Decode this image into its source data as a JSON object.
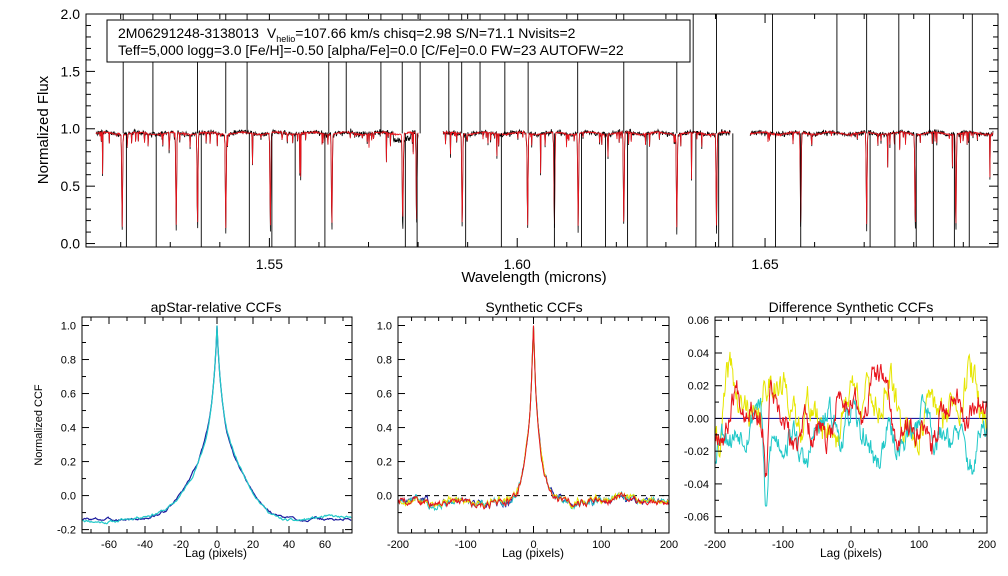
{
  "chart_data": [
    {
      "type": "line",
      "panel": "spectrum",
      "info_line1": {
        "star": "2M06291248-3138013",
        "v_label": "V",
        "v_sub": "helio",
        "v_value": "=107.66 km/s  chisq=2.98  S/N=71.1  Nvisits=2"
      },
      "info_line2": "Teff=5,000 logg=3.0 [Fe/H]=-0.50 [alpha/Fe]=0.0 [C/Fe]=0.0 FW=23 AUTOFW=22",
      "xlabel": "Wavelength (microns)",
      "ylabel": "Normalized Flux",
      "xlim": [
        1.513,
        1.697
      ],
      "ylim": [
        -0.03,
        2.0
      ],
      "x_ticks": [
        "1.55",
        "1.60",
        "1.65"
      ],
      "y_ticks": [
        "0.0",
        "0.5",
        "1.0",
        "1.5",
        "2.0"
      ],
      "chips": [
        [
          1.515,
          1.58
        ],
        [
          1.585,
          1.643
        ],
        [
          1.647,
          1.696
        ]
      ],
      "continuum": 0.96,
      "series": [
        {
          "name": "observed",
          "color": "#000000"
        },
        {
          "name": "synthetic model",
          "color": "#e8141c"
        }
      ],
      "bad_pixel_spikes": [
        1.5205,
        1.5265,
        1.5355,
        1.5412,
        1.5455,
        1.5505,
        1.5552,
        1.5612,
        1.5655,
        1.5725,
        1.5768,
        1.5798,
        1.5862,
        1.5888,
        1.5925,
        1.5968,
        1.6022,
        1.6075,
        1.6122,
        1.6178,
        1.6215,
        1.6262,
        1.6322,
        1.6355,
        1.6402,
        1.6435,
        1.6515,
        1.6572,
        1.6645,
        1.6705,
        1.6762,
        1.6805,
        1.6832,
        1.6882,
        1.6912
      ],
      "deep_lines": [
        1.5203,
        1.5312,
        1.5355,
        1.5412,
        1.5502,
        1.5626,
        1.5769,
        1.5797,
        1.5889,
        1.6021,
        1.6075,
        1.6123,
        1.6215,
        1.6322,
        1.6402,
        1.6572,
        1.6705,
        1.6803,
        1.6885
      ]
    },
    {
      "type": "line",
      "panel": "apstar_ccf",
      "title": "apStar-relative CCFs",
      "xlabel": "Lag (pixels)",
      "ylabel": "Normalized CCF",
      "xlim": [
        -75,
        75
      ],
      "ylim": [
        -0.22,
        1.05
      ],
      "x_ticks": [
        "-60",
        "-40",
        "-20",
        "0",
        "20",
        "40",
        "60"
      ],
      "y_ticks": [
        "-0.2",
        "0.0",
        "0.2",
        "0.4",
        "0.6",
        "0.8",
        "1.0"
      ],
      "peak": {
        "lag": 0,
        "ccf": 1.0
      },
      "series": [
        {
          "name": "visit 1",
          "color": "#1b1b9e"
        },
        {
          "name": "visit 2",
          "color": "#20c8c8"
        }
      ]
    },
    {
      "type": "line",
      "panel": "synthetic_ccf",
      "title": "Synthetic CCFs",
      "xlabel": "Lag (pixels)",
      "ylabel": "",
      "xlim": [
        -200,
        200
      ],
      "ylim": [
        -0.22,
        1.05
      ],
      "x_ticks": [
        "-200",
        "-100",
        "0",
        "100",
        "200"
      ],
      "y_ticks": [
        "0.0",
        "0.2",
        "0.4",
        "0.6",
        "0.8",
        "1.0"
      ],
      "zero_line": "dashed",
      "peak": {
        "lag": 0,
        "ccf": 1.0
      },
      "series": [
        {
          "name": "ccf a",
          "color": "#1b1b9e"
        },
        {
          "name": "ccf b",
          "color": "#20c8c8"
        },
        {
          "name": "ccf c",
          "color": "#e6e600"
        },
        {
          "name": "ccf d",
          "color": "#e8141c"
        }
      ]
    },
    {
      "type": "line",
      "panel": "difference_ccf",
      "title": "Difference Synthetic CCFs",
      "xlabel": "Lag (pixels)",
      "ylabel": "",
      "xlim": [
        -200,
        200
      ],
      "ylim": [
        -0.07,
        0.062
      ],
      "x_ticks": [
        "-200",
        "-100",
        "0",
        "100",
        "200"
      ],
      "y_ticks": [
        "-0.06",
        "-0.04",
        "-0.02",
        "0.00",
        "0.02",
        "0.04",
        "0.06"
      ],
      "minimum": {
        "lag": -125,
        "value": -0.062
      },
      "series": [
        {
          "name": "reference",
          "color": "#1b1b9e",
          "values": [
            0,
            0
          ]
        },
        {
          "name": "yellow",
          "color": "#e6e600"
        },
        {
          "name": "cyan",
          "color": "#20c8c8"
        },
        {
          "name": "red",
          "color": "#e8141c"
        }
      ]
    }
  ]
}
